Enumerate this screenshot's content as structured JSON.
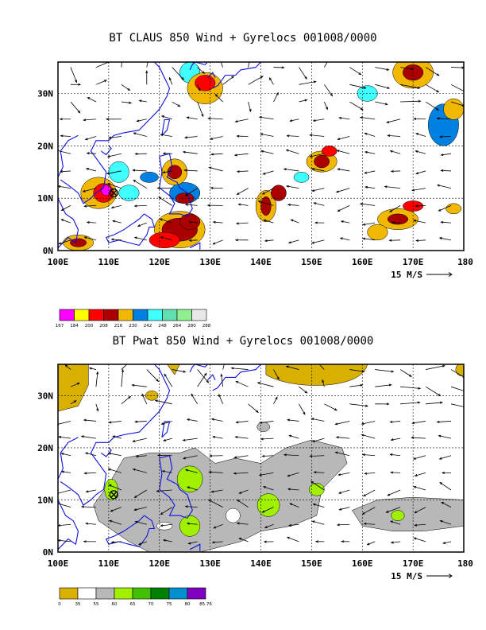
{
  "chart_data": [
    {
      "type": "heatmap",
      "title": "BT CLAUS 850 Wind + Gyrelocs 001008/0000",
      "x_ticks": [
        "100E",
        "110E",
        "120E",
        "130E",
        "140E",
        "150E",
        "160E",
        "170E",
        "180"
      ],
      "y_ticks": [
        "0N",
        "10N",
        "20N",
        "30N"
      ],
      "xlim": [
        100,
        180
      ],
      "ylim": [
        0,
        36
      ],
      "grid": true,
      "wind_scale_label": "15 M/S",
      "colorbar": {
        "labels": [
          "167",
          "184",
          "200",
          "208",
          "216",
          "230",
          "242",
          "248",
          "264",
          "280",
          "288"
        ],
        "colors": [
          "#ff00ff",
          "#ffff00",
          "#ff0000",
          "#aa0000",
          "#f0b800",
          "#0080e0",
          "#40ffff",
          "#60e0b0",
          "#90f090",
          "#e8e8e8"
        ]
      },
      "gyre_marker": {
        "lon": 111,
        "lat": 11
      }
    },
    {
      "type": "heatmap",
      "title": "BT Pwat 850 Wind + Gyrelocs 001008/0000",
      "x_ticks": [
        "100E",
        "110E",
        "120E",
        "130E",
        "140E",
        "150E",
        "160E",
        "170E",
        "180"
      ],
      "y_ticks": [
        "0N",
        "10N",
        "20N",
        "30N"
      ],
      "xlim": [
        100,
        180
      ],
      "ylim": [
        0,
        36
      ],
      "grid": true,
      "wind_scale_label": "15 M/S",
      "colorbar": {
        "labels": [
          "0",
          "35",
          "55",
          "60",
          "65",
          "70",
          "75",
          "80",
          "85.76"
        ],
        "colors": [
          "#d8b000",
          "#ffffff",
          "#b8b8b8",
          "#a0f000",
          "#40c000",
          "#008000",
          "#0090d0",
          "#8000c0"
        ]
      },
      "gyre_marker": {
        "lon": 111,
        "lat": 11
      }
    }
  ]
}
